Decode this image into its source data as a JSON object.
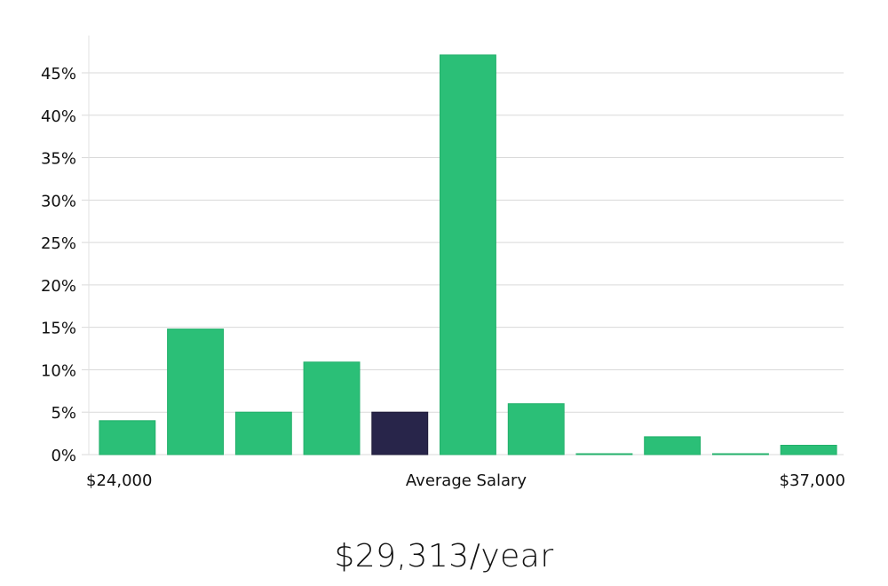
{
  "chart_data": {
    "type": "bar",
    "title": "",
    "xlabel": "",
    "ylabel": "",
    "ylim": [
      0,
      0.5
    ],
    "yticks": [
      0,
      0.05,
      0.1,
      0.15,
      0.2,
      0.25,
      0.3,
      0.35,
      0.4,
      0.45
    ],
    "ytick_labels": [
      "0%",
      "5%",
      "10%",
      "15%",
      "20%",
      "25%",
      "30%",
      "35%",
      "40%",
      "45%"
    ],
    "values": [
      0.04,
      0.148,
      0.05,
      0.109,
      0.05,
      0.471,
      0.06,
      0.001,
      0.021,
      0.001,
      0.011
    ],
    "highlight_index": 4,
    "x_labels": {
      "left": "$24,000",
      "center": "Average Salary",
      "right": "$37,000"
    },
    "grid": true,
    "colors": {
      "bar": "#2bbf77",
      "highlight": "#28254a",
      "grid": "#d9d9d9",
      "axis": "#e2e2e2"
    }
  },
  "salary_text": "$29,313/year"
}
